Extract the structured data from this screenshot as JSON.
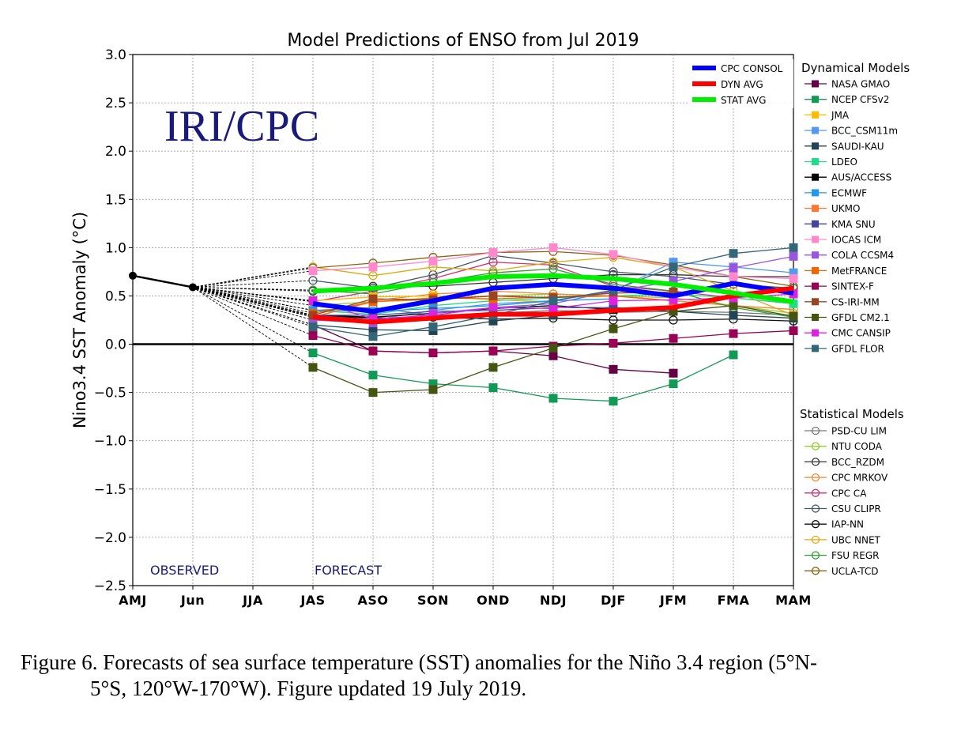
{
  "chart_data": {
    "type": "line",
    "title": "Model Predictions of ENSO from Jul 2019",
    "ylabel": "Nino3.4 SST Anomaly (°C)",
    "xlabel": "",
    "categories": [
      "AMJ",
      "Jun",
      "JJA",
      "JAS",
      "ASO",
      "SON",
      "OND",
      "NDJ",
      "DJF",
      "JFM",
      "FMA",
      "MAM"
    ],
    "ylim": [
      -2.5,
      3.0
    ],
    "yticks": [
      "3.0",
      "2.5",
      "2.0",
      "1.5",
      "1.0",
      "0.5",
      "0.0",
      "−0.5",
      "−1.0",
      "−1.5",
      "−2.0",
      "−2.5"
    ],
    "ytick_values": [
      3.0,
      2.5,
      2.0,
      1.5,
      1.0,
      0.5,
      0.0,
      -0.5,
      -1.0,
      -1.5,
      -2.0,
      -2.5
    ],
    "grid": true,
    "watermark": "IRI/CPC",
    "observed_label": "OBSERVED",
    "forecast_label": "FORECAST",
    "observed": {
      "x": [
        "AMJ",
        "Jun"
      ],
      "values": [
        0.71,
        0.59
      ],
      "color": "#000000"
    },
    "consensus_series": [
      {
        "name": "CPC CONSOL",
        "color": "#0000ff",
        "start": 3,
        "values": [
          0.42,
          0.34,
          0.45,
          0.58,
          0.62,
          0.58,
          0.5,
          0.63,
          0.53
        ]
      },
      {
        "name": "DYN AVG",
        "color": "#ff0000",
        "start": 3,
        "values": [
          0.28,
          0.23,
          0.27,
          0.31,
          0.31,
          0.35,
          0.38,
          0.5,
          0.58
        ]
      },
      {
        "name": "STAT AVG",
        "color": "#00ee00",
        "start": 3,
        "values": [
          0.55,
          0.58,
          0.63,
          0.7,
          0.71,
          0.68,
          0.62,
          0.53,
          0.44
        ]
      }
    ],
    "dynamical_title": "Dynamical Models",
    "dynamical_models": [
      {
        "name": "NASA GMAO",
        "color": "#660044",
        "start": 3,
        "values": [
          0.2,
          -0.07,
          -0.09,
          -0.07,
          -0.12,
          -0.26,
          -0.3
        ]
      },
      {
        "name": "NCEP CFSv2",
        "color": "#119955",
        "start": 3,
        "values": [
          -0.09,
          -0.32,
          -0.41,
          -0.45,
          -0.56,
          -0.59,
          -0.41,
          -0.11
        ]
      },
      {
        "name": "JMA",
        "color": "#ffbb00",
        "start": 3,
        "values": [
          0.45,
          0.49,
          0.5,
          0.46,
          0.44
        ]
      },
      {
        "name": "BCC_CSM11m",
        "color": "#5599ee",
        "start": 3,
        "values": [
          0.3,
          0.25,
          0.35,
          0.42,
          0.45,
          0.55,
          0.85,
          0.8,
          0.74
        ]
      },
      {
        "name": "SAUDI-KAU",
        "color": "#224455",
        "start": 3,
        "values": [
          0.2,
          0.15,
          0.14,
          0.24,
          0.3,
          0.38,
          0.34,
          0.3,
          0.27
        ]
      },
      {
        "name": "LDEO",
        "color": "#22dd88",
        "start": 3,
        "values": [
          0.35,
          0.31,
          0.4,
          0.45,
          0.48,
          0.5,
          0.52,
          0.48,
          0.42
        ]
      },
      {
        "name": "AUS/ACCESS",
        "color": "#000000",
        "start": 3,
        "values": [
          0.3,
          0.28,
          0.32,
          0.37,
          0.4,
          0.36
        ]
      },
      {
        "name": "ECMWF",
        "color": "#2299ee",
        "start": 3,
        "values": [
          0.35,
          0.34,
          0.37,
          0.4,
          0.45,
          0.47
        ]
      },
      {
        "name": "UKMO",
        "color": "#ff7733",
        "start": 3,
        "values": [
          0.28,
          0.44,
          0.47,
          0.5,
          0.48
        ]
      },
      {
        "name": "KMA SNU",
        "color": "#444499",
        "start": 3,
        "values": [
          0.3,
          0.3,
          0.34,
          0.35,
          0.38,
          0.38
        ]
      },
      {
        "name": "IOCAS ICM",
        "color": "#ff88cc",
        "start": 3,
        "values": [
          0.76,
          0.8,
          0.86,
          0.95,
          1.0,
          0.93,
          0.8,
          0.7,
          0.68
        ]
      },
      {
        "name": "COLA CCSM4",
        "color": "#9955dd",
        "start": 3,
        "values": [
          0.25,
          0.22,
          0.32,
          0.38,
          0.42,
          0.55,
          0.65,
          0.79,
          0.91
        ]
      },
      {
        "name": "MetFRANCE",
        "color": "#ee6600",
        "start": 3,
        "values": [
          0.32,
          0.44,
          0.48,
          0.47,
          0.49,
          0.5,
          0.45
        ]
      },
      {
        "name": "SINTEX-F",
        "color": "#990055",
        "start": 3,
        "values": [
          0.09,
          -0.07,
          -0.09,
          -0.07,
          -0.02,
          0.01,
          0.06,
          0.11,
          0.14
        ]
      },
      {
        "name": "CS-IRI-MM",
        "color": "#994422",
        "start": 3,
        "values": [
          0.3,
          0.47,
          0.46,
          0.5,
          0.48,
          0.53,
          0.54
        ]
      },
      {
        "name": "GFDL CM2.1",
        "color": "#445511",
        "start": 3,
        "values": [
          -0.24,
          -0.5,
          -0.47,
          -0.24,
          -0.04,
          0.16,
          0.34,
          0.4,
          0.29
        ]
      },
      {
        "name": "CMC CANSIP",
        "color": "#dd22dd",
        "start": 3,
        "values": [
          0.45,
          0.26,
          0.3,
          0.38,
          0.37,
          0.45,
          0.46,
          0.48,
          0.52
        ]
      },
      {
        "name": "GFDL FLOR",
        "color": "#336677",
        "start": 3,
        "values": [
          0.18,
          0.08,
          0.18,
          0.3,
          0.45,
          0.56,
          0.8,
          0.94,
          1.0
        ]
      }
    ],
    "statistical_title": "Statistical Models",
    "statistical_models": [
      {
        "name": "PSD-CU LIM",
        "color": "#777777",
        "start": 3,
        "values": [
          0.35,
          0.38,
          0.3,
          0.32,
          0.35,
          0.33,
          0.34,
          0.33,
          0.3
        ]
      },
      {
        "name": "NTU CODA",
        "color": "#99cc33",
        "start": 3,
        "values": [
          0.4,
          0.44,
          0.46,
          0.5,
          0.52,
          0.5,
          0.48,
          0.4,
          0.32
        ]
      },
      {
        "name": "BCC_RZDM",
        "color": "#333333",
        "start": 3,
        "values": [
          0.55,
          0.6,
          0.6,
          0.64,
          0.68,
          0.72,
          0.72,
          0.7,
          0.7
        ]
      },
      {
        "name": "CPC MRKOV",
        "color": "#ee8833",
        "start": 3,
        "values": [
          0.28,
          0.45,
          0.52,
          0.55,
          0.52,
          0.5,
          0.45,
          0.4,
          0.36
        ]
      },
      {
        "name": "CPC CA",
        "color": "#cc3377",
        "start": 3,
        "values": [
          0.44,
          0.55,
          0.68,
          0.85,
          0.82,
          0.6,
          0.55,
          0.48,
          0.42
        ]
      },
      {
        "name": "CSU CLIPR",
        "color": "#445566",
        "start": 3,
        "values": [
          0.66,
          0.58,
          0.72,
          0.92,
          0.84,
          0.75,
          0.7,
          0.62,
          0.58
        ]
      },
      {
        "name": "IAP-NN",
        "color": "#111111",
        "start": 3,
        "values": [
          0.29,
          0.27,
          0.28,
          0.26,
          0.27,
          0.25,
          0.25,
          0.26,
          0.24
        ]
      },
      {
        "name": "UBC NNET",
        "color": "#ddaa11",
        "start": 3,
        "values": [
          0.8,
          0.71,
          0.8,
          0.76,
          0.85,
          0.9,
          0.8,
          0.55,
          0.3
        ]
      },
      {
        "name": "FSU REGR",
        "color": "#339933",
        "start": 3,
        "values": [
          0.56,
          0.52,
          0.64,
          0.74,
          0.78,
          0.62,
          0.55,
          0.38,
          0.28
        ]
      },
      {
        "name": "UCLA-TCD",
        "color": "#886611",
        "start": 3,
        "values": [
          0.79,
          0.84,
          0.9,
          0.95,
          0.96,
          0.92,
          0.82,
          0.7,
          0.6
        ]
      }
    ]
  },
  "caption": {
    "line1": "Figure 6. Forecasts of sea surface temperature (SST) anomalies for the Niño 3.4 region (5°N-",
    "line2": "5°S, 120°W-170°W). Figure updated 19 July 2019."
  }
}
